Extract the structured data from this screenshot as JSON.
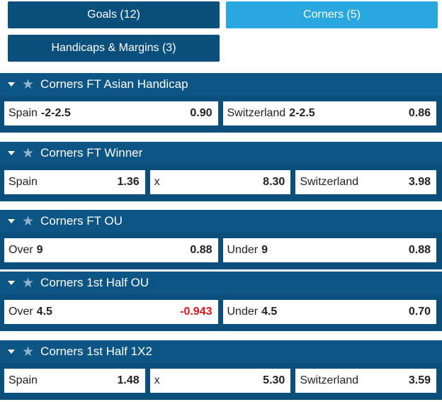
{
  "tabs": [
    {
      "label": "Goals (12)"
    },
    {
      "label": "Corners (5)",
      "active": true
    },
    {
      "label": "Handicaps & Margins (3)"
    }
  ],
  "markets": [
    {
      "title": "Corners FT Asian Handicap",
      "outcomes": [
        {
          "name": "Spain",
          "line": "-2-2.5",
          "odds": "0.90"
        },
        {
          "name": "Switzerland",
          "line": "2-2.5",
          "odds": "0.86"
        }
      ]
    },
    {
      "title": "Corners FT Winner",
      "outcomes": [
        {
          "name": "Spain",
          "odds": "1.36"
        },
        {
          "name": "x",
          "odds": "8.30"
        },
        {
          "name": "Switzerland",
          "odds": "3.98"
        }
      ]
    },
    {
      "title": "Corners FT OU",
      "outcomes": [
        {
          "name": "Over",
          "line": "9",
          "odds": "0.88"
        },
        {
          "name": "Under",
          "line": "9",
          "odds": "0.88"
        }
      ]
    },
    {
      "title": "Corners 1st Half OU",
      "outcomes": [
        {
          "name": "Over",
          "line": "4.5",
          "odds": "-0.943"
        },
        {
          "name": "Under",
          "line": "4.5",
          "odds": "0.70"
        }
      ]
    },
    {
      "title": "Corners 1st Half 1X2",
      "outcomes": [
        {
          "name": "Spain",
          "odds": "1.48"
        },
        {
          "name": "x",
          "odds": "5.30"
        },
        {
          "name": "Switzerland",
          "odds": "3.59"
        }
      ]
    }
  ]
}
